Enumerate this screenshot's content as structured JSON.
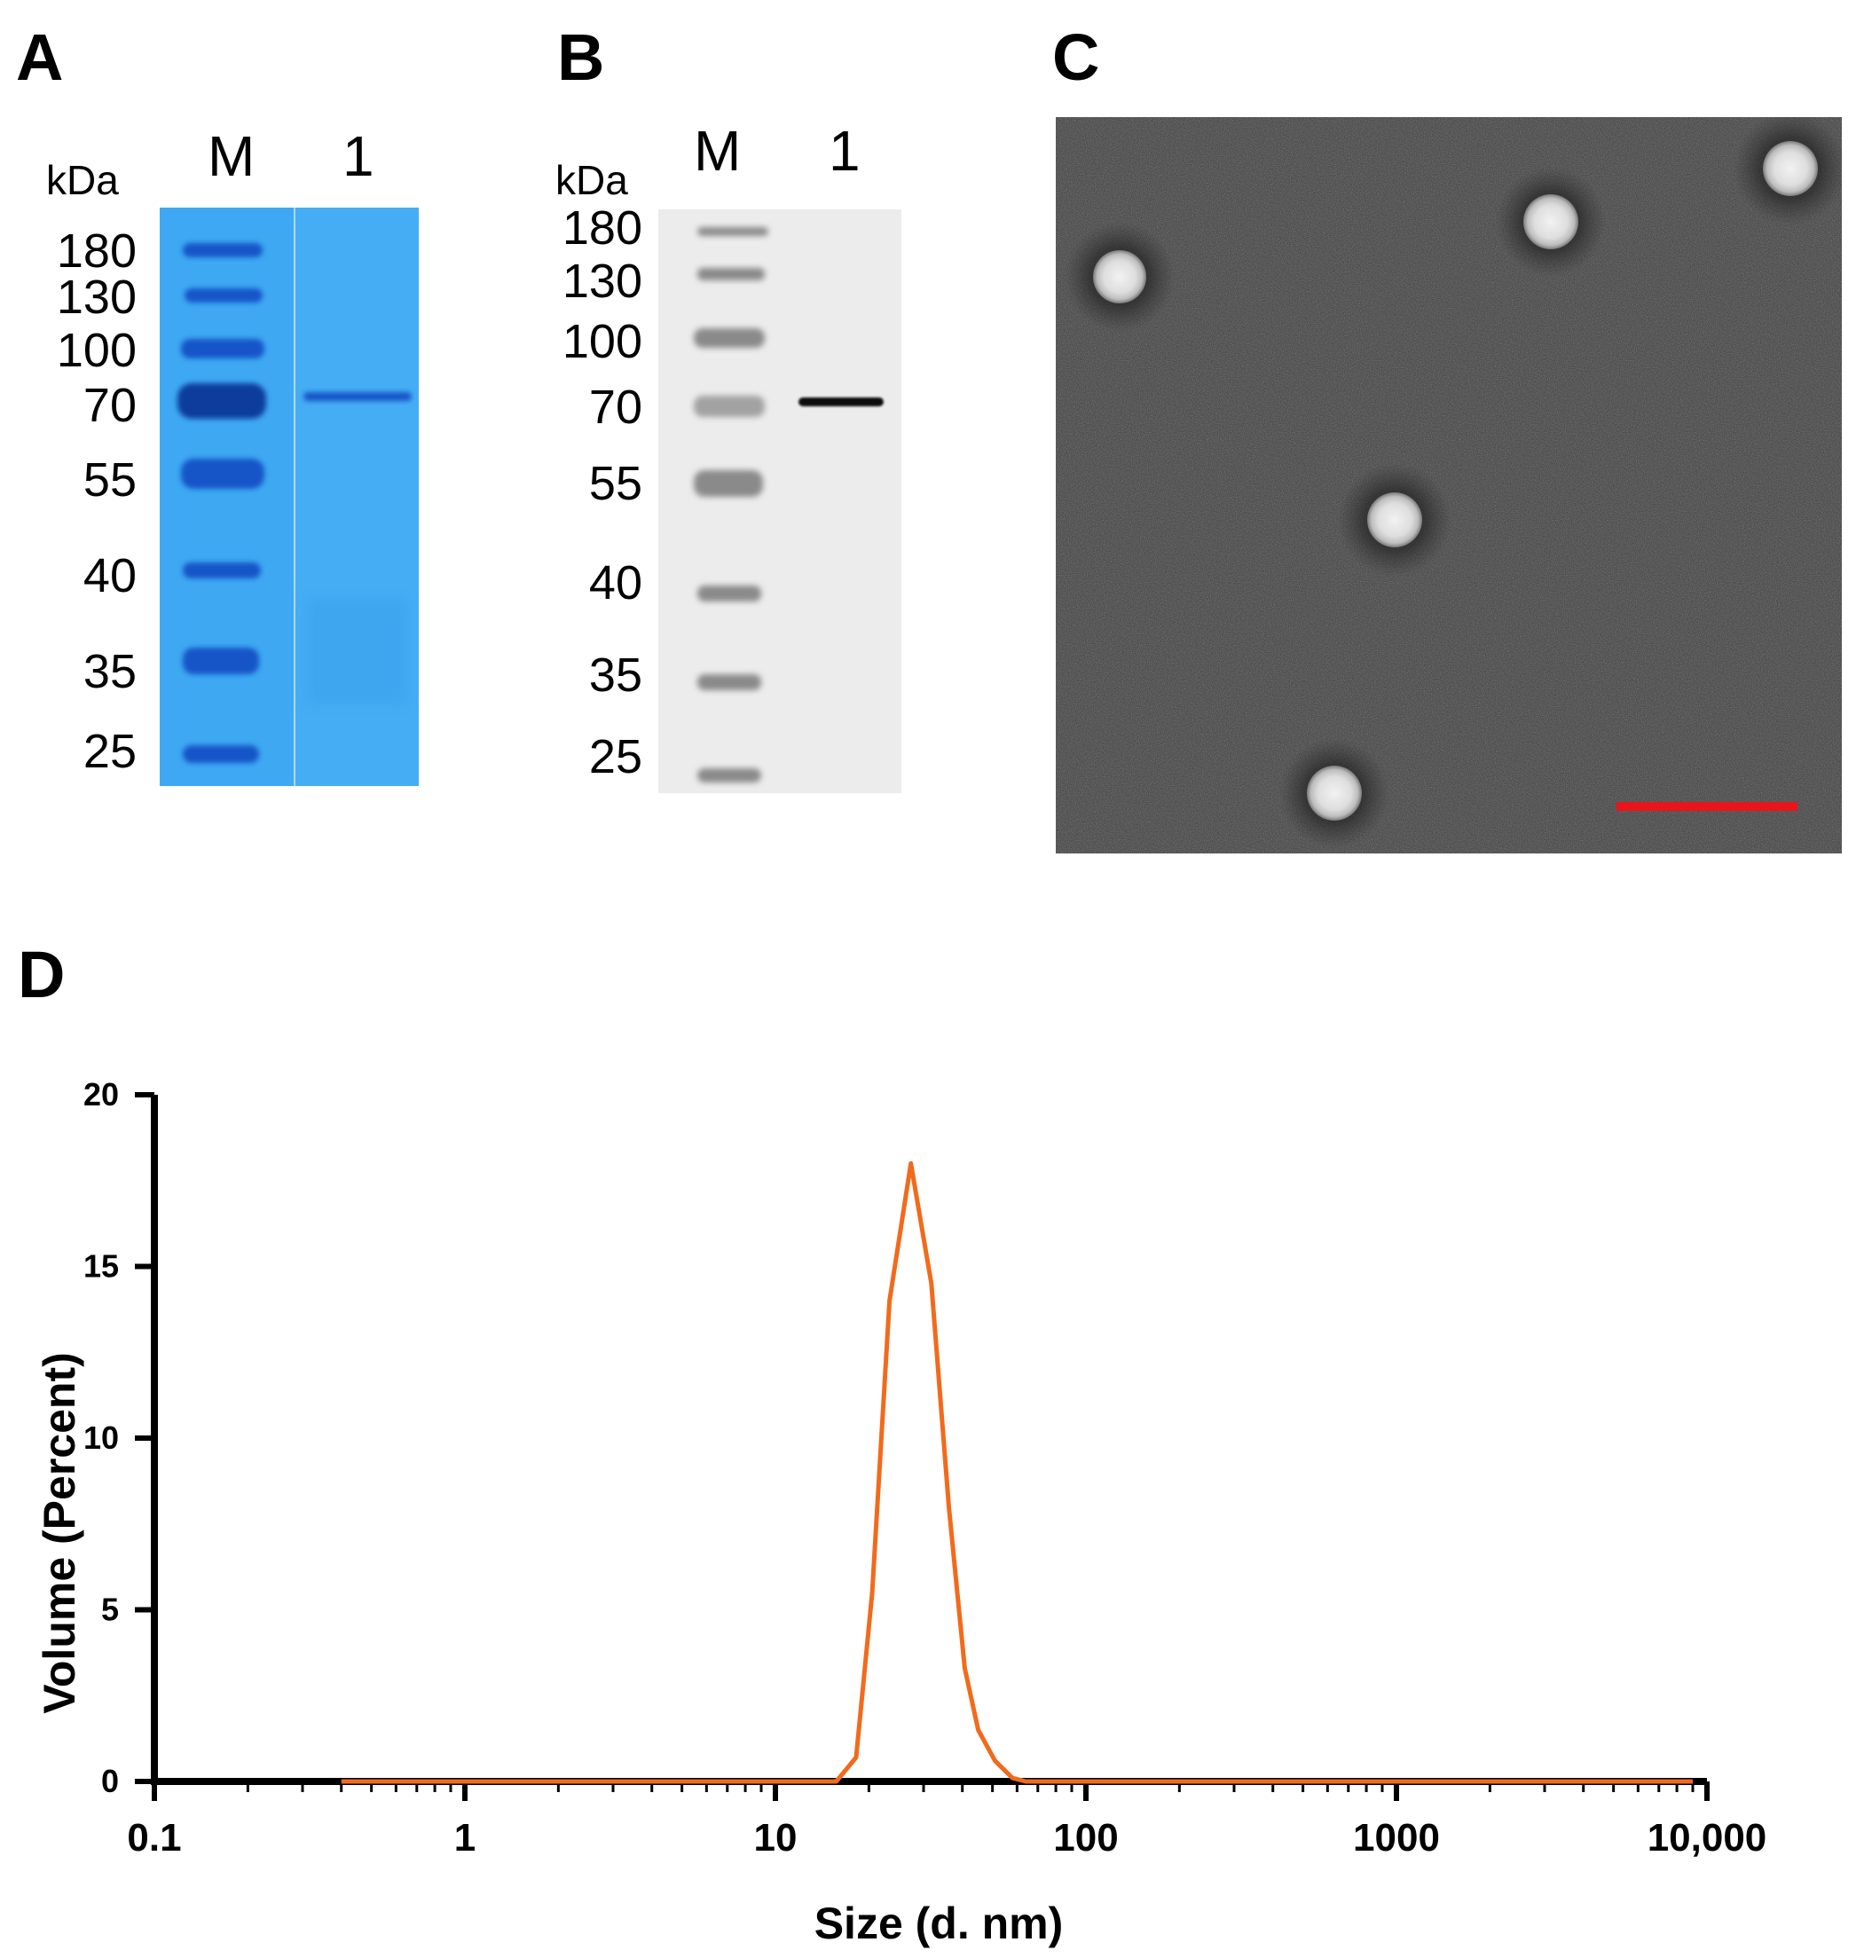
{
  "panels": {
    "A": {
      "letter": "A",
      "lanes": [
        "M",
        "1"
      ],
      "unit": "kDa",
      "markers": [
        "180",
        "130",
        "100",
        "70",
        "55",
        "40",
        "35",
        "25"
      ]
    },
    "B": {
      "letter": "B",
      "lanes": [
        "M",
        "1"
      ],
      "unit": "kDa",
      "markers": [
        "180",
        "130",
        "100",
        "70",
        "55",
        "40",
        "35",
        "25"
      ]
    },
    "C": {
      "letter": "C",
      "scalebar_color": "#e8151b"
    },
    "D": {
      "letter": "D"
    }
  },
  "colors": {
    "gel_blue": "#3ea8f2",
    "series": "#f26a1b"
  },
  "chart_data": {
    "type": "line",
    "xscale": "log",
    "xlim": [
      0.1,
      10000
    ],
    "ylim": [
      0,
      20
    ],
    "xlabel": "Size (d. nm)",
    "ylabel": "Volume (Percent)",
    "xticks": [
      0.1,
      1,
      10,
      100,
      1000,
      10000
    ],
    "xtick_labels": [
      "0.1",
      "1",
      "10",
      "100",
      "1000",
      "10,000"
    ],
    "yticks": [
      0,
      5,
      10,
      15,
      20
    ],
    "ytick_labels": [
      "0",
      "5",
      "10",
      "15",
      "20"
    ],
    "grid": false,
    "series": [
      {
        "x": [
          0.4,
          15.7,
          18.2,
          20.5,
          23.3,
          27.3,
          31.8,
          36.2,
          40.7,
          45.0,
          51.0,
          58.0,
          64.0,
          9000
        ],
        "y": [
          0,
          0,
          0.7,
          5.5,
          14.0,
          18.0,
          14.5,
          8.0,
          3.3,
          1.5,
          0.6,
          0.1,
          0,
          0
        ]
      }
    ]
  }
}
